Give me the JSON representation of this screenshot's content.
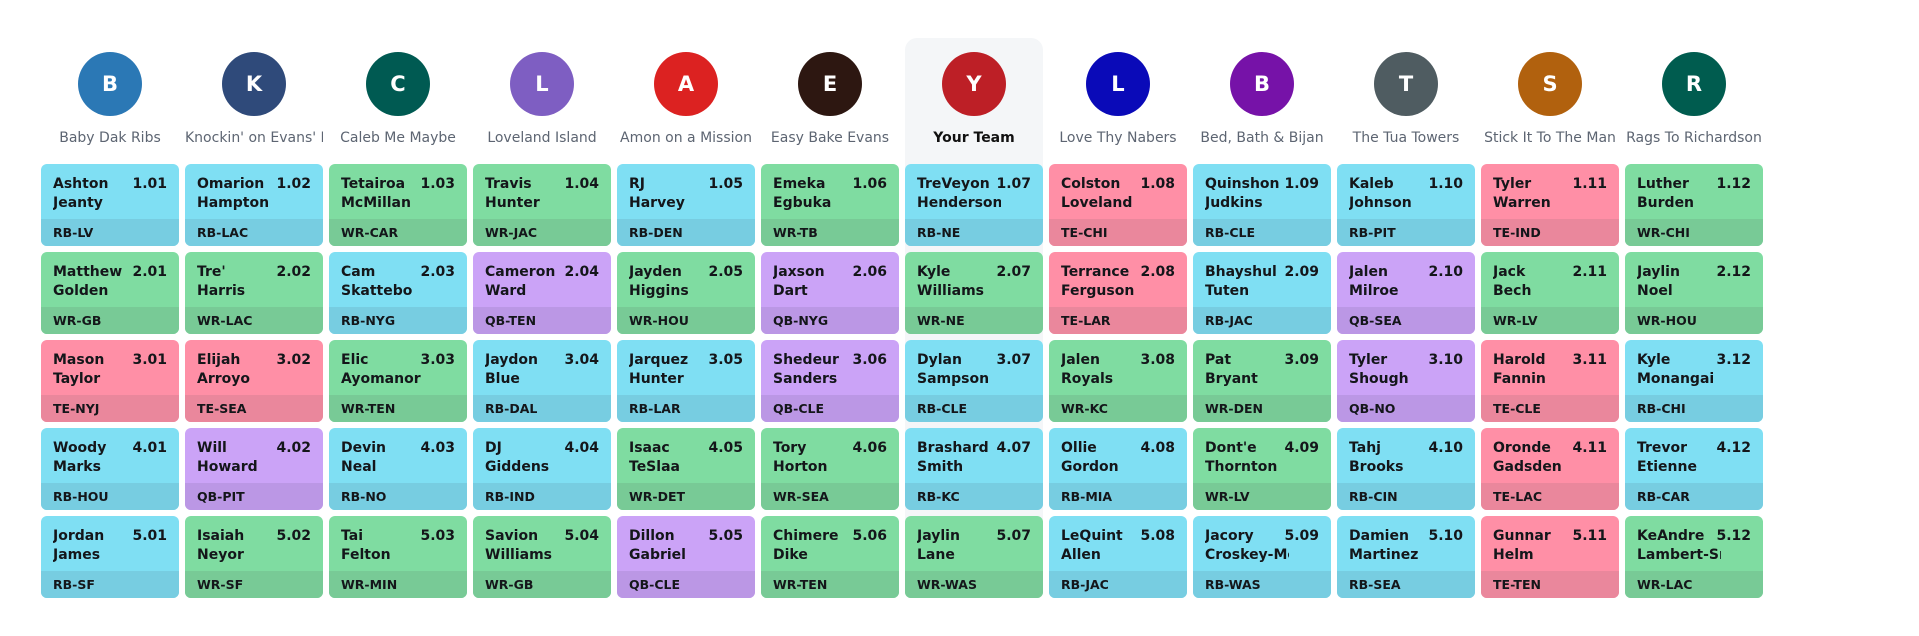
{
  "position_colors": {
    "RB": "#7fdff3",
    "WR": "#7fdca1",
    "TE": "#ff8fa6",
    "QB": "#cba3f7"
  },
  "teams": [
    {
      "initial": "B",
      "name": "Baby Dak Ribs",
      "color": "#2b78b5",
      "current": false,
      "picks": [
        {
          "first": "Ashton",
          "last": "Jeanty",
          "num": "1.01",
          "pos": "RB",
          "label": "RB-LV"
        },
        {
          "first": "Matthew",
          "last": "Golden",
          "num": "2.01",
          "pos": "WR",
          "label": "WR-GB"
        },
        {
          "first": "Mason",
          "last": "Taylor",
          "num": "3.01",
          "pos": "TE",
          "label": "TE-NYJ"
        },
        {
          "first": "Woody",
          "last": "Marks",
          "num": "4.01",
          "pos": "RB",
          "label": "RB-HOU"
        },
        {
          "first": "Jordan",
          "last": "James",
          "num": "5.01",
          "pos": "RB",
          "label": "RB-SF"
        }
      ]
    },
    {
      "initial": "K",
      "name": "Knockin' on Evans' Door",
      "color": "#2f4a7a",
      "current": false,
      "picks": [
        {
          "first": "Omarion",
          "last": "Hampton",
          "num": "1.02",
          "pos": "RB",
          "label": "RB-LAC"
        },
        {
          "first": "Tre'",
          "last": "Harris",
          "num": "2.02",
          "pos": "WR",
          "label": "WR-LAC"
        },
        {
          "first": "Elijah",
          "last": "Arroyo",
          "num": "3.02",
          "pos": "TE",
          "label": "TE-SEA"
        },
        {
          "first": "Will",
          "last": "Howard",
          "num": "4.02",
          "pos": "QB",
          "label": "QB-PIT"
        },
        {
          "first": "Isaiah",
          "last": "Neyor",
          "num": "5.02",
          "pos": "WR",
          "label": "WR-SF"
        }
      ]
    },
    {
      "initial": "C",
      "name": "Caleb Me Maybe",
      "color": "#005a52",
      "current": false,
      "picks": [
        {
          "first": "Tetairoa",
          "last": "McMillan",
          "num": "1.03",
          "pos": "WR",
          "label": "WR-CAR"
        },
        {
          "first": "Cam",
          "last": "Skattebo",
          "num": "2.03",
          "pos": "RB",
          "label": "RB-NYG"
        },
        {
          "first": "Elic",
          "last": "Ayomanor",
          "num": "3.03",
          "pos": "WR",
          "label": "WR-TEN"
        },
        {
          "first": "Devin",
          "last": "Neal",
          "num": "4.03",
          "pos": "RB",
          "label": "RB-NO"
        },
        {
          "first": "Tai",
          "last": "Felton",
          "num": "5.03",
          "pos": "WR",
          "label": "WR-MIN"
        }
      ]
    },
    {
      "initial": "L",
      "name": "Loveland Island",
      "color": "#7e5ec2",
      "current": false,
      "picks": [
        {
          "first": "Travis",
          "last": "Hunter",
          "num": "1.04",
          "pos": "WR",
          "label": "WR-JAC"
        },
        {
          "first": "Cameron",
          "last": "Ward",
          "num": "2.04",
          "pos": "QB",
          "label": "QB-TEN"
        },
        {
          "first": "Jaydon",
          "last": "Blue",
          "num": "3.04",
          "pos": "RB",
          "label": "RB-DAL"
        },
        {
          "first": "DJ",
          "last": "Giddens",
          "num": "4.04",
          "pos": "RB",
          "label": "RB-IND"
        },
        {
          "first": "Savion",
          "last": "Williams",
          "num": "5.04",
          "pos": "WR",
          "label": "WR-GB"
        }
      ]
    },
    {
      "initial": "A",
      "name": "Amon on a Mission",
      "color": "#dc2221",
      "current": false,
      "picks": [
        {
          "first": "RJ",
          "last": "Harvey",
          "num": "1.05",
          "pos": "RB",
          "label": "RB-DEN"
        },
        {
          "first": "Jayden",
          "last": "Higgins",
          "num": "2.05",
          "pos": "WR",
          "label": "WR-HOU"
        },
        {
          "first": "Jarquez",
          "last": "Hunter",
          "num": "3.05",
          "pos": "RB",
          "label": "RB-LAR"
        },
        {
          "first": "Isaac",
          "last": "TeSlaa",
          "num": "4.05",
          "pos": "WR",
          "label": "WR-DET"
        },
        {
          "first": "Dillon",
          "last": "Gabriel",
          "num": "5.05",
          "pos": "QB",
          "label": "QB-CLE"
        }
      ]
    },
    {
      "initial": "E",
      "name": "Easy Bake Evans",
      "color": "#2d1711",
      "current": false,
      "picks": [
        {
          "first": "Emeka",
          "last": "Egbuka",
          "num": "1.06",
          "pos": "WR",
          "label": "WR-TB"
        },
        {
          "first": "Jaxson",
          "last": "Dart",
          "num": "2.06",
          "pos": "QB",
          "label": "QB-NYG"
        },
        {
          "first": "Shedeur",
          "last": "Sanders",
          "num": "3.06",
          "pos": "QB",
          "label": "QB-CLE"
        },
        {
          "first": "Tory",
          "last": "Horton",
          "num": "4.06",
          "pos": "WR",
          "label": "WR-SEA"
        },
        {
          "first": "Chimere",
          "last": "Dike",
          "num": "5.06",
          "pos": "WR",
          "label": "WR-TEN"
        }
      ]
    },
    {
      "initial": "Y",
      "name": "Your Team",
      "color": "#bd1f26",
      "current": true,
      "picks": [
        {
          "first": "TreVeyon",
          "last": "Henderson",
          "num": "1.07",
          "pos": "RB",
          "label": "RB-NE"
        },
        {
          "first": "Kyle",
          "last": "Williams",
          "num": "2.07",
          "pos": "WR",
          "label": "WR-NE"
        },
        {
          "first": "Dylan",
          "last": "Sampson",
          "num": "3.07",
          "pos": "RB",
          "label": "RB-CLE"
        },
        {
          "first": "Brashard",
          "last": "Smith",
          "num": "4.07",
          "pos": "RB",
          "label": "RB-KC"
        },
        {
          "first": "Jaylin",
          "last": "Lane",
          "num": "5.07",
          "pos": "WR",
          "label": "WR-WAS"
        }
      ]
    },
    {
      "initial": "L",
      "name": "Love Thy Nabers",
      "color": "#0a0ab8",
      "current": false,
      "picks": [
        {
          "first": "Colston",
          "last": "Loveland",
          "num": "1.08",
          "pos": "TE",
          "label": "TE-CHI"
        },
        {
          "first": "Terrance",
          "last": "Ferguson",
          "num": "2.08",
          "pos": "TE",
          "label": "TE-LAR"
        },
        {
          "first": "Jalen",
          "last": "Royals",
          "num": "3.08",
          "pos": "WR",
          "label": "WR-KC"
        },
        {
          "first": "Ollie",
          "last": "Gordon",
          "num": "4.08",
          "pos": "RB",
          "label": "RB-MIA"
        },
        {
          "first": "LeQuint",
          "last": "Allen",
          "num": "5.08",
          "pos": "RB",
          "label": "RB-JAC"
        }
      ]
    },
    {
      "initial": "B",
      "name": "Bed, Bath & Bijan",
      "color": "#7612a8",
      "current": false,
      "picks": [
        {
          "first": "Quinshon",
          "last": "Judkins",
          "num": "1.09",
          "pos": "RB",
          "label": "RB-CLE"
        },
        {
          "first": "Bhayshul",
          "last": "Tuten",
          "num": "2.09",
          "pos": "RB",
          "label": "RB-JAC"
        },
        {
          "first": "Pat",
          "last": "Bryant",
          "num": "3.09",
          "pos": "WR",
          "label": "WR-DEN"
        },
        {
          "first": "Dont'e",
          "last": "Thornton",
          "num": "4.09",
          "pos": "WR",
          "label": "WR-LV"
        },
        {
          "first": "Jacory",
          "last": "Croskey-Merritt",
          "num": "5.09",
          "pos": "RB",
          "label": "RB-WAS"
        }
      ]
    },
    {
      "initial": "T",
      "name": "The Tua Towers",
      "color": "#4f5c61",
      "current": false,
      "picks": [
        {
          "first": "Kaleb",
          "last": "Johnson",
          "num": "1.10",
          "pos": "RB",
          "label": "RB-PIT"
        },
        {
          "first": "Jalen",
          "last": "Milroe",
          "num": "2.10",
          "pos": "QB",
          "label": "QB-SEA"
        },
        {
          "first": "Tyler",
          "last": "Shough",
          "num": "3.10",
          "pos": "QB",
          "label": "QB-NO"
        },
        {
          "first": "Tahj",
          "last": "Brooks",
          "num": "4.10",
          "pos": "RB",
          "label": "RB-CIN"
        },
        {
          "first": "Damien",
          "last": "Martinez",
          "num": "5.10",
          "pos": "RB",
          "label": "RB-SEA"
        }
      ]
    },
    {
      "initial": "S",
      "name": "Stick It To The Man",
      "color": "#b1610e",
      "current": false,
      "picks": [
        {
          "first": "Tyler",
          "last": "Warren",
          "num": "1.11",
          "pos": "TE",
          "label": "TE-IND"
        },
        {
          "first": "Jack",
          "last": "Bech",
          "num": "2.11",
          "pos": "WR",
          "label": "WR-LV"
        },
        {
          "first": "Harold",
          "last": "Fannin",
          "num": "3.11",
          "pos": "TE",
          "label": "TE-CLE"
        },
        {
          "first": "Oronde",
          "last": "Gadsden",
          "num": "4.11",
          "pos": "TE",
          "label": "TE-LAC"
        },
        {
          "first": "Gunnar",
          "last": "Helm",
          "num": "5.11",
          "pos": "TE",
          "label": "TE-TEN"
        }
      ]
    },
    {
      "initial": "R",
      "name": "Rags To Richardson",
      "color": "#005c4f",
      "current": false,
      "picks": [
        {
          "first": "Luther",
          "last": "Burden",
          "num": "1.12",
          "pos": "WR",
          "label": "WR-CHI"
        },
        {
          "first": "Jaylin",
          "last": "Noel",
          "num": "2.12",
          "pos": "WR",
          "label": "WR-HOU"
        },
        {
          "first": "Kyle",
          "last": "Monangai",
          "num": "3.12",
          "pos": "RB",
          "label": "RB-CHI"
        },
        {
          "first": "Trevor",
          "last": "Etienne",
          "num": "4.12",
          "pos": "RB",
          "label": "RB-CAR"
        },
        {
          "first": "KeAndre",
          "last": "Lambert-Smith",
          "num": "5.12",
          "pos": "WR",
          "label": "WR-LAC"
        }
      ]
    }
  ]
}
